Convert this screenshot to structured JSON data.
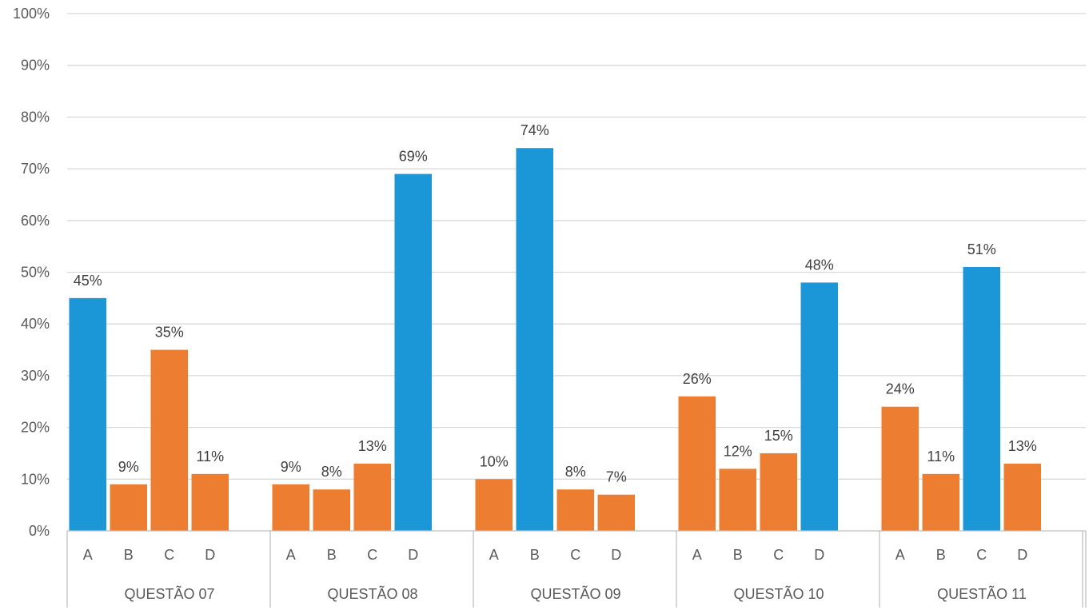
{
  "chart_data": {
    "type": "bar",
    "ylim": [
      0,
      100
    ],
    "y_ticks": [
      "0%",
      "10%",
      "20%",
      "30%",
      "40%",
      "50%",
      "60%",
      "70%",
      "80%",
      "90%",
      "100%"
    ],
    "grid": true,
    "colors": {
      "correct": "#1b96d6",
      "other": "#ed7d31"
    },
    "groups": [
      {
        "label": "QUESTÃO 07",
        "bars": [
          {
            "option": "A",
            "value": 45,
            "label": "45%",
            "color": "#1b96d6"
          },
          {
            "option": "B",
            "value": 9,
            "label": "9%",
            "color": "#ed7d31"
          },
          {
            "option": "C",
            "value": 35,
            "label": "35%",
            "color": "#ed7d31"
          },
          {
            "option": "D",
            "value": 11,
            "label": "11%",
            "color": "#ed7d31"
          }
        ]
      },
      {
        "label": "QUESTÃO 08",
        "bars": [
          {
            "option": "A",
            "value": 9,
            "label": "9%",
            "color": "#ed7d31"
          },
          {
            "option": "B",
            "value": 8,
            "label": "8%",
            "color": "#ed7d31"
          },
          {
            "option": "C",
            "value": 13,
            "label": "13%",
            "color": "#ed7d31"
          },
          {
            "option": "D",
            "value": 69,
            "label": "69%",
            "color": "#1b96d6"
          }
        ]
      },
      {
        "label": "QUESTÃO 09",
        "bars": [
          {
            "option": "A",
            "value": 10,
            "label": "10%",
            "color": "#ed7d31"
          },
          {
            "option": "B",
            "value": 74,
            "label": "74%",
            "color": "#1b96d6"
          },
          {
            "option": "C",
            "value": 8,
            "label": "8%",
            "color": "#ed7d31"
          },
          {
            "option": "D",
            "value": 7,
            "label": "7%",
            "color": "#ed7d31"
          }
        ]
      },
      {
        "label": "QUESTÃO 10",
        "bars": [
          {
            "option": "A",
            "value": 26,
            "label": "26%",
            "color": "#ed7d31"
          },
          {
            "option": "B",
            "value": 12,
            "label": "12%",
            "color": "#ed7d31"
          },
          {
            "option": "C",
            "value": 15,
            "label": "15%",
            "color": "#ed7d31"
          },
          {
            "option": "D",
            "value": 48,
            "label": "48%",
            "color": "#1b96d6"
          }
        ]
      },
      {
        "label": "QUESTÃO 11",
        "bars": [
          {
            "option": "A",
            "value": 24,
            "label": "24%",
            "color": "#ed7d31"
          },
          {
            "option": "B",
            "value": 11,
            "label": "11%",
            "color": "#ed7d31"
          },
          {
            "option": "C",
            "value": 51,
            "label": "51%",
            "color": "#1b96d6"
          },
          {
            "option": "D",
            "value": 13,
            "label": "13%",
            "color": "#ed7d31"
          }
        ]
      }
    ]
  }
}
